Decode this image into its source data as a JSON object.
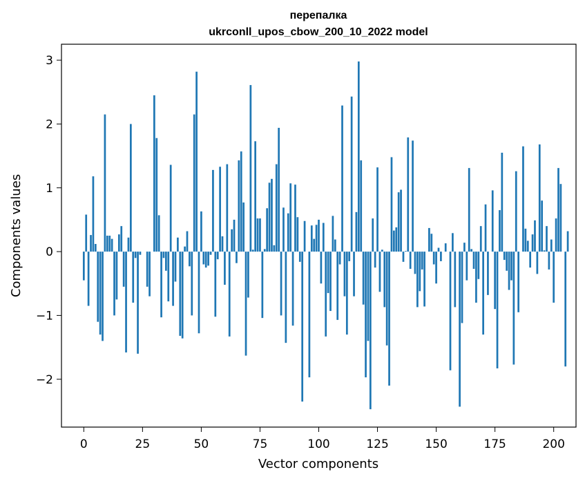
{
  "chart_data": {
    "type": "bar",
    "title": "перепалка",
    "subtitle": "ukrconll_upos_cbow_200_10_2022 model",
    "xlabel": "Vector components",
    "ylabel": "Components values",
    "xlim": [
      -9.5,
      209.5
    ],
    "ylim": [
      -2.75,
      3.25
    ],
    "xticks": [
      0,
      25,
      50,
      75,
      100,
      125,
      150,
      175,
      200
    ],
    "yticks": [
      -2,
      -1,
      0,
      1,
      2,
      3
    ],
    "ytick_labels": [
      "−2",
      "−1",
      "0",
      "1",
      "2",
      "3"
    ],
    "bar_color": "#1f77b4",
    "grid": false,
    "values": [
      -0.45,
      0.58,
      -0.85,
      0.26,
      1.18,
      0.12,
      -1.1,
      -1.3,
      -1.4,
      2.15,
      0.25,
      0.25,
      0.2,
      -1.0,
      -0.75,
      0.27,
      0.4,
      -0.55,
      -1.58,
      0.22,
      2.0,
      -0.8,
      -0.1,
      -1.6,
      -0.05,
      0.0,
      0.0,
      -0.55,
      -0.7,
      0.0,
      2.45,
      1.78,
      0.57,
      -1.03,
      -0.1,
      -0.3,
      -0.78,
      1.36,
      -0.85,
      -0.47,
      0.22,
      -1.32,
      -1.36,
      0.08,
      0.32,
      -0.23,
      -1.0,
      2.15,
      2.82,
      -1.28,
      0.63,
      -0.2,
      -0.25,
      -0.22,
      -0.05,
      1.28,
      -1.02,
      -0.12,
      1.33,
      0.24,
      -0.52,
      1.37,
      -1.33,
      0.35,
      0.5,
      -0.18,
      1.43,
      1.57,
      0.77,
      -1.63,
      -0.72,
      2.61,
      0.03,
      1.73,
      0.52,
      0.52,
      -1.04,
      0.04,
      0.68,
      1.08,
      1.14,
      0.1,
      1.37,
      1.94,
      -1.0,
      0.69,
      -1.43,
      0.6,
      1.07,
      -1.16,
      1.05,
      0.54,
      -0.16,
      -2.35,
      0.48,
      0.0,
      -1.97,
      0.41,
      0.2,
      0.42,
      0.5,
      -0.5,
      0.45,
      -1.33,
      -0.65,
      -0.93,
      0.56,
      0.19,
      -1.07,
      -0.2,
      2.29,
      -0.7,
      -1.3,
      -0.15,
      2.43,
      -0.7,
      0.62,
      2.98,
      1.43,
      -0.83,
      -1.97,
      -1.4,
      -2.47,
      0.52,
      -0.25,
      1.32,
      -0.63,
      0.03,
      -0.87,
      -1.47,
      -2.1,
      1.48,
      0.33,
      0.38,
      0.93,
      0.97,
      -0.16,
      0.01,
      1.79,
      -0.27,
      1.74,
      -0.35,
      -0.87,
      -0.62,
      -0.28,
      -0.86,
      0.0,
      0.37,
      0.28,
      -0.2,
      -0.5,
      0.06,
      -0.15,
      0.0,
      0.13,
      0.0,
      -1.86,
      0.29,
      -0.87,
      0.0,
      -2.43,
      -1.12,
      0.14,
      -0.45,
      1.31,
      0.04,
      -0.27,
      -0.8,
      -0.43,
      0.4,
      -1.3,
      0.74,
      -0.68,
      0.0,
      0.96,
      -0.9,
      -1.83,
      0.65,
      1.55,
      -0.13,
      -0.3,
      -0.6,
      -0.45,
      -1.77,
      1.26,
      -0.95,
      0.0,
      1.65,
      0.36,
      0.17,
      -0.25,
      0.27,
      0.49,
      -0.35,
      1.68,
      0.8,
      0.02,
      0.4,
      -0.28,
      0.19,
      -0.8,
      0.52,
      1.31,
      1.06,
      0.0,
      -1.8,
      0.32
    ]
  }
}
